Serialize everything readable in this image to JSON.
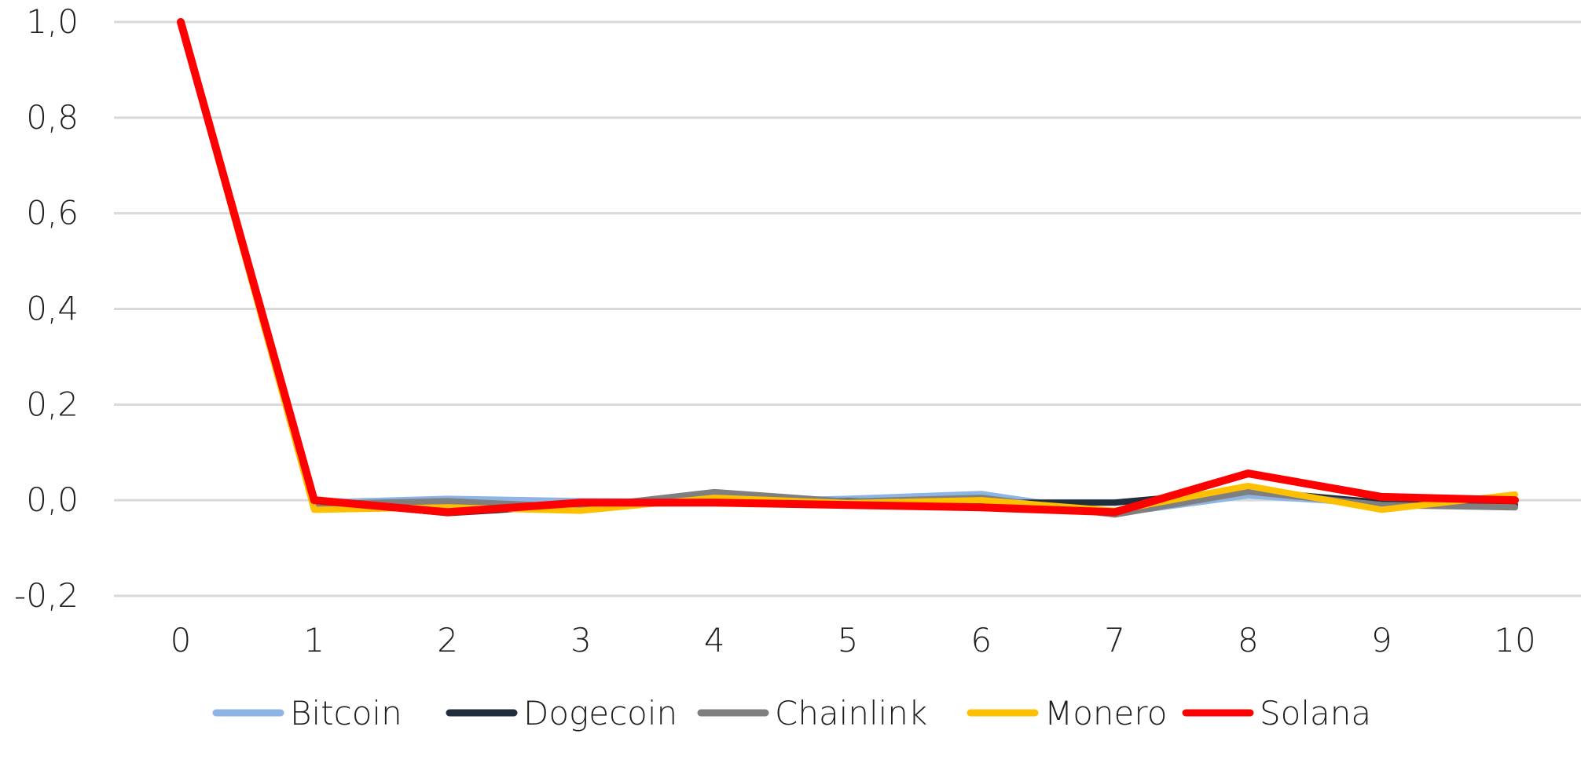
{
  "chart_data": {
    "type": "line",
    "title": "",
    "xlabel": "",
    "ylabel": "",
    "x": [
      0,
      1,
      2,
      3,
      4,
      5,
      6,
      7,
      8,
      9,
      10
    ],
    "x_tick_labels": [
      "0",
      "1",
      "2",
      "3",
      "4",
      "5",
      "6",
      "7",
      "8",
      "9",
      "10"
    ],
    "ylim": [
      -0.2,
      1.0
    ],
    "y_ticks": [
      -0.2,
      0.0,
      0.2,
      0.4,
      0.6,
      0.8,
      1.0
    ],
    "y_tick_labels": [
      "-0,2",
      "0,0",
      "0,2",
      "0,4",
      "0,6",
      "0,8",
      "1,0"
    ],
    "grid": "horizontal",
    "legend_position": "bottom",
    "series": [
      {
        "name": "Bitcoin",
        "color": "#8EB4E3",
        "values": [
          1.0,
          -0.005,
          0.003,
          -0.002,
          -0.004,
          0.003,
          0.013,
          -0.028,
          0.01,
          -0.008,
          -0.012
        ]
      },
      {
        "name": "Dogecoin",
        "color": "#1F2D3D",
        "values": [
          1.0,
          0.0,
          -0.027,
          -0.01,
          0.004,
          -0.002,
          -0.005,
          -0.005,
          0.02,
          -0.005,
          -0.01
        ]
      },
      {
        "name": "Chainlink",
        "color": "#7F7F7F",
        "values": [
          1.0,
          -0.008,
          -0.002,
          -0.015,
          0.017,
          -0.003,
          0.005,
          -0.03,
          0.018,
          -0.01,
          -0.015
        ]
      },
      {
        "name": "Monero",
        "color": "#FFC000",
        "values": [
          1.0,
          -0.02,
          -0.015,
          -0.022,
          0.005,
          -0.006,
          0.0,
          -0.022,
          0.03,
          -0.02,
          0.012
        ]
      },
      {
        "name": "Solana",
        "color": "#FF0000",
        "values": [
          1.0,
          0.0,
          -0.025,
          -0.005,
          -0.005,
          -0.01,
          -0.015,
          -0.025,
          0.056,
          0.007,
          0.0
        ]
      }
    ]
  }
}
